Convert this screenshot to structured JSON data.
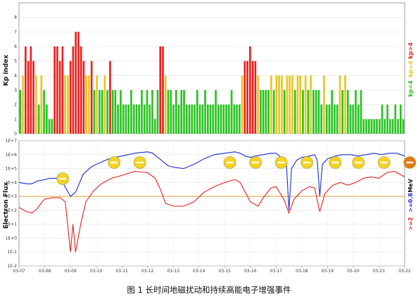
{
  "caption": "图 1 长时间地磁扰动和持续高能电子增强事件",
  "kp_panel": {
    "ylabel": "Kp index",
    "yticks": [
      "0",
      "1",
      "2",
      "3",
      "4",
      "5",
      "6",
      "7",
      "8"
    ],
    "legend": [
      {
        "label": "kp>4",
        "color": "#e8201e"
      },
      {
        "label": "kp=4",
        "color": "#e8c61e"
      },
      {
        "label": "kp<4",
        "color": "#27c21f"
      }
    ]
  },
  "flux_panel": {
    "ylabel": "Electron Flux",
    "yticks": [
      "1E+7",
      "1E+6",
      "1E+5",
      "1E+4",
      "1E+3",
      "1E+2",
      "1E+1",
      "1E+0",
      "1E-1",
      "1E-2"
    ],
    "legend": [
      {
        "label": ">=2",
        "color": "#e8201e"
      },
      {
        "label": ">=0.8",
        "color": "#1b2ed6"
      },
      {
        "label": "MeV",
        "color": "#111111"
      }
    ],
    "threshold_color": "#e8a53a"
  },
  "x_ticks": [
    "03-07",
    "03-08",
    "03-09",
    "03-10",
    "03-11",
    "03-12",
    "03-13",
    "03-14",
    "03-15",
    "03-16",
    "03-17",
    "03-18",
    "03-19",
    "03-20",
    "03-21",
    "03-22"
  ],
  "chart_data": {
    "type": "bar",
    "kp": [
      3,
      4,
      6,
      5,
      6,
      5,
      4,
      2,
      4,
      3,
      2,
      1,
      1,
      6,
      6,
      5,
      6,
      4,
      4,
      5,
      6,
      7,
      7,
      6,
      5,
      4,
      4,
      5,
      3,
      4,
      3,
      3,
      4,
      3,
      5,
      3,
      3,
      2,
      3,
      2,
      2,
      2,
      3,
      2,
      2,
      2,
      3,
      2,
      3,
      2,
      3,
      1,
      3,
      6,
      6,
      4,
      3,
      3,
      2,
      3,
      2,
      3,
      3,
      2,
      2,
      2,
      2,
      3,
      2,
      2,
      3,
      2,
      2,
      2,
      3,
      2,
      2,
      2,
      2,
      2,
      3,
      2,
      2,
      2,
      4,
      5,
      5,
      6,
      5,
      5,
      4,
      3,
      3,
      3,
      3,
      4,
      3,
      4,
      4,
      4,
      3,
      4,
      4,
      4,
      3,
      4,
      4,
      3,
      4,
      3,
      4,
      3,
      3,
      3,
      2,
      4,
      2,
      2,
      3,
      2,
      2,
      4,
      3,
      4,
      3,
      2,
      2,
      3,
      2,
      3,
      1,
      1,
      1,
      1,
      1,
      1,
      1,
      2,
      1,
      2,
      1,
      1,
      2,
      1,
      2,
      1
    ],
    "electron_flux": {
      "x_days": [
        "03-07",
        "03-08",
        "03-09",
        "03-10",
        "03-11",
        "03-12",
        "03-13",
        "03-14",
        "03-15",
        "03-16",
        "03-17",
        "03-18",
        "03-19",
        "03-20",
        "03-21",
        "03-22"
      ],
      "series": [
        {
          "name": ">=0.8",
          "points": [
            [
              0,
              4.0
            ],
            [
              0.3,
              3.9
            ],
            [
              0.5,
              3.9
            ],
            [
              0.7,
              4.1
            ],
            [
              1.0,
              4.2
            ],
            [
              1.2,
              4.3
            ],
            [
              1.5,
              4.3
            ],
            [
              1.7,
              4.0
            ],
            [
              2.0,
              3.0
            ],
            [
              2.2,
              3.3
            ],
            [
              2.5,
              4.6
            ],
            [
              2.8,
              5.1
            ],
            [
              3.0,
              5.3
            ],
            [
              3.5,
              5.7
            ],
            [
              4.0,
              5.9
            ],
            [
              4.5,
              6.1
            ],
            [
              5.0,
              6.2
            ],
            [
              5.2,
              6.1
            ],
            [
              5.4,
              5.8
            ],
            [
              5.6,
              5.5
            ],
            [
              5.8,
              5.2
            ],
            [
              6.0,
              5.1
            ],
            [
              6.4,
              5.0
            ],
            [
              6.8,
              5.3
            ],
            [
              7.2,
              5.7
            ],
            [
              7.6,
              6.0
            ],
            [
              8.0,
              6.1
            ],
            [
              8.4,
              6.2
            ],
            [
              8.6,
              6.1
            ],
            [
              8.8,
              5.9
            ],
            [
              9.0,
              5.8
            ],
            [
              9.2,
              5.9
            ],
            [
              9.5,
              6.0
            ],
            [
              9.8,
              6.1
            ],
            [
              10.0,
              6.1
            ],
            [
              10.2,
              5.8
            ],
            [
              10.4,
              5.4
            ],
            [
              10.5,
              2.0
            ],
            [
              10.6,
              5.0
            ],
            [
              10.8,
              5.6
            ],
            [
              11.0,
              5.8
            ],
            [
              11.3,
              5.9
            ],
            [
              11.5,
              6.0
            ],
            [
              11.6,
              5.6
            ],
            [
              11.7,
              3.0
            ],
            [
              11.8,
              5.3
            ],
            [
              12.0,
              5.7
            ],
            [
              12.3,
              5.9
            ],
            [
              12.6,
              6.0
            ],
            [
              12.9,
              6.0
            ],
            [
              13.2,
              5.9
            ],
            [
              13.5,
              6.0
            ],
            [
              13.8,
              6.1
            ],
            [
              14.1,
              6.0
            ],
            [
              14.4,
              6.1
            ],
            [
              14.7,
              6.1
            ],
            [
              15.0,
              5.9
            ]
          ]
        },
        {
          "name": ">=2",
          "points": [
            [
              0,
              2.2
            ],
            [
              0.3,
              1.9
            ],
            [
              0.5,
              1.8
            ],
            [
              0.7,
              2.1
            ],
            [
              0.9,
              2.6
            ],
            [
              1.0,
              2.8
            ],
            [
              1.3,
              2.9
            ],
            [
              1.6,
              2.9
            ],
            [
              1.8,
              2.6
            ],
            [
              2.0,
              -1.0
            ],
            [
              2.1,
              1.0
            ],
            [
              2.2,
              -1.0
            ],
            [
              2.4,
              1.0
            ],
            [
              2.6,
              2.6
            ],
            [
              2.9,
              3.4
            ],
            [
              3.2,
              3.9
            ],
            [
              3.6,
              4.3
            ],
            [
              4.0,
              4.5
            ],
            [
              4.5,
              4.8
            ],
            [
              5.0,
              4.7
            ],
            [
              5.3,
              4.3
            ],
            [
              5.5,
              3.5
            ],
            [
              5.7,
              2.5
            ],
            [
              6.0,
              2.3
            ],
            [
              6.4,
              2.3
            ],
            [
              6.8,
              2.6
            ],
            [
              7.2,
              3.3
            ],
            [
              7.6,
              3.7
            ],
            [
              8.0,
              4.0
            ],
            [
              8.4,
              4.2
            ],
            [
              8.6,
              4.0
            ],
            [
              8.8,
              3.3
            ],
            [
              9.0,
              2.6
            ],
            [
              9.3,
              2.3
            ],
            [
              9.5,
              2.9
            ],
            [
              9.8,
              3.6
            ],
            [
              10.0,
              3.7
            ],
            [
              10.3,
              2.8
            ],
            [
              10.5,
              1.8
            ],
            [
              10.7,
              2.8
            ],
            [
              11.0,
              3.4
            ],
            [
              11.3,
              3.7
            ],
            [
              11.5,
              3.6
            ],
            [
              11.7,
              1.9
            ],
            [
              11.9,
              3.2
            ],
            [
              12.2,
              3.8
            ],
            [
              12.5,
              4.0
            ],
            [
              12.8,
              3.8
            ],
            [
              13.1,
              4.0
            ],
            [
              13.4,
              4.3
            ],
            [
              13.7,
              4.4
            ],
            [
              14.0,
              4.3
            ],
            [
              14.3,
              4.7
            ],
            [
              14.6,
              4.8
            ],
            [
              15.0,
              4.4
            ]
          ]
        }
      ],
      "ylim_log10": [
        -2,
        7
      ],
      "threshold_log10": 3.0
    },
    "event_markers": [
      {
        "x_day": 1.7,
        "color": "#f3d327"
      },
      {
        "x_day": 3.7,
        "color": "#f3d327"
      },
      {
        "x_day": 4.7,
        "color": "#f3d327"
      },
      {
        "x_day": 8.2,
        "color": "#f3d327"
      },
      {
        "x_day": 9.2,
        "color": "#f3d327"
      },
      {
        "x_day": 10.2,
        "color": "#f3d327"
      },
      {
        "x_day": 11.2,
        "color": "#f3d327"
      },
      {
        "x_day": 12.3,
        "color": "#f3d327"
      },
      {
        "x_day": 13.2,
        "color": "#f3d327"
      },
      {
        "x_day": 14.2,
        "color": "#f3d327"
      },
      {
        "x_day": 15.2,
        "color": "#e27a1a"
      }
    ]
  }
}
